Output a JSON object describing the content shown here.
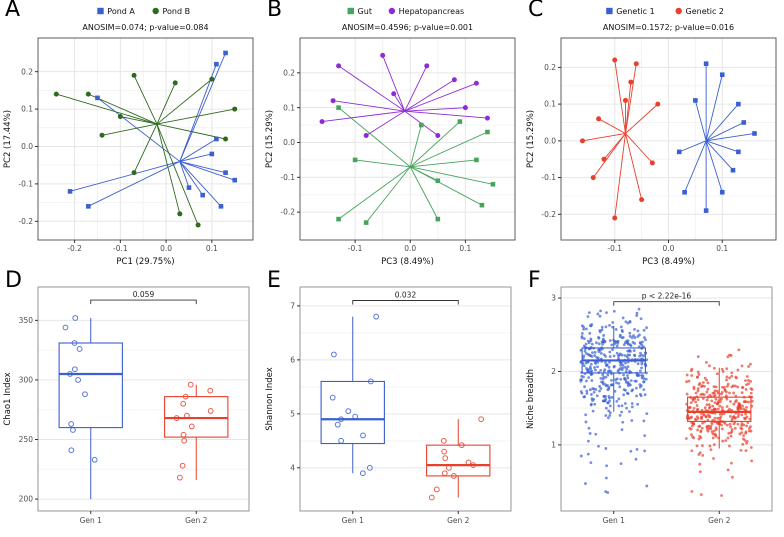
{
  "figure": {
    "panels": [
      "A",
      "B",
      "C",
      "D",
      "E",
      "F"
    ]
  },
  "colors": {
    "blue": "#3B5FD0",
    "red": "#E8402C",
    "dark_green": "#2D6A1E",
    "green": "#45A45D",
    "purple": "#8F2BD6",
    "grid": "#E6E6E6",
    "border": "#4D4D4D"
  },
  "chart_data": [
    {
      "panel_label": "A",
      "type": "spider",
      "title": "ANOSIM=0.074; p-value=0.084",
      "xlabel": "PC1 (29.75%)",
      "ylabel": "PC2 (17.44%)",
      "xlim": [
        -0.28,
        0.19
      ],
      "ylim": [
        -0.25,
        0.29
      ],
      "xticks": [
        -0.2,
        -0.1,
        0.0,
        0.1
      ],
      "yticks": [
        -0.2,
        -0.1,
        0.0,
        0.1,
        0.2
      ],
      "legend_position": "top",
      "series": [
        {
          "name": "Pond A",
          "color": "#3B5FD0",
          "shape": "square",
          "centroid": [
            0.03,
            -0.04
          ],
          "points": [
            [
              0.13,
              0.25
            ],
            [
              0.11,
              0.22
            ],
            [
              -0.15,
              0.13
            ],
            [
              -0.21,
              -0.12
            ],
            [
              -0.17,
              -0.16
            ],
            [
              0.1,
              -0.02
            ],
            [
              0.13,
              -0.07
            ],
            [
              0.15,
              -0.09
            ],
            [
              0.05,
              -0.11
            ],
            [
              0.08,
              -0.13
            ],
            [
              0.11,
              0.02
            ],
            [
              0.12,
              -0.16
            ]
          ]
        },
        {
          "name": "Pond B",
          "color": "#2D6A1E",
          "shape": "circle",
          "centroid": [
            -0.02,
            0.06
          ],
          "points": [
            [
              -0.24,
              0.14
            ],
            [
              -0.17,
              0.14
            ],
            [
              -0.07,
              0.19
            ],
            [
              0.02,
              0.17
            ],
            [
              0.1,
              0.18
            ],
            [
              -0.14,
              0.03
            ],
            [
              -0.1,
              0.08
            ],
            [
              0.15,
              0.1
            ],
            [
              0.13,
              0.02
            ],
            [
              -0.07,
              -0.07
            ],
            [
              0.03,
              -0.18
            ],
            [
              0.07,
              -0.21
            ]
          ]
        }
      ]
    },
    {
      "panel_label": "B",
      "type": "spider",
      "title": "ANOSIM=0.4596; p-value=0.001",
      "xlabel": "PC3 (8.49%)",
      "ylabel": "PC2 (15.29%)",
      "xlim": [
        -0.2,
        0.19
      ],
      "ylim": [
        -0.28,
        0.3
      ],
      "xticks": [
        -0.1,
        0.0,
        0.1
      ],
      "yticks": [
        -0.2,
        -0.1,
        0.0,
        0.1,
        0.2
      ],
      "legend_position": "top",
      "series": [
        {
          "name": "Gut",
          "color": "#45A45D",
          "shape": "square",
          "centroid": [
            0.0,
            -0.07
          ],
          "points": [
            [
              -0.13,
              -0.22
            ],
            [
              -0.08,
              -0.23
            ],
            [
              0.05,
              -0.22
            ],
            [
              0.13,
              -0.18
            ],
            [
              0.15,
              -0.12
            ],
            [
              0.12,
              -0.05
            ],
            [
              0.14,
              0.03
            ],
            [
              0.09,
              0.06
            ],
            [
              -0.1,
              -0.05
            ],
            [
              -0.13,
              0.1
            ],
            [
              0.05,
              -0.11
            ],
            [
              0.02,
              0.05
            ]
          ]
        },
        {
          "name": "Hepatopancreas",
          "color": "#8F2BD6",
          "shape": "circle",
          "centroid": [
            -0.01,
            0.09
          ],
          "points": [
            [
              -0.13,
              0.22
            ],
            [
              -0.05,
              0.25
            ],
            [
              0.03,
              0.22
            ],
            [
              0.08,
              0.18
            ],
            [
              0.12,
              0.17
            ],
            [
              -0.16,
              0.06
            ],
            [
              -0.14,
              0.12
            ],
            [
              0.1,
              0.1
            ],
            [
              0.14,
              0.07
            ],
            [
              -0.03,
              0.14
            ],
            [
              0.05,
              0.02
            ],
            [
              -0.08,
              0.02
            ]
          ]
        }
      ]
    },
    {
      "panel_label": "C",
      "type": "spider",
      "title": "ANOSIM=0.1572; p-value=0.016",
      "xlabel": "PC3 (8.49%)",
      "ylabel": "PC2 (15.29%)",
      "xlim": [
        -0.2,
        0.2
      ],
      "ylim": [
        -0.27,
        0.28
      ],
      "xticks": [
        -0.1,
        0.0,
        0.1
      ],
      "yticks": [
        -0.2,
        -0.1,
        0.0,
        0.1,
        0.2
      ],
      "legend_position": "top",
      "series": [
        {
          "name": "Genetic 1",
          "color": "#3B5FD0",
          "shape": "square",
          "centroid": [
            0.07,
            0.0
          ],
          "points": [
            [
              0.07,
              0.21
            ],
            [
              0.1,
              0.18
            ],
            [
              0.13,
              0.1
            ],
            [
              0.16,
              0.02
            ],
            [
              0.13,
              -0.03
            ],
            [
              0.1,
              -0.14
            ],
            [
              0.07,
              -0.19
            ],
            [
              0.03,
              -0.14
            ],
            [
              0.14,
              0.05
            ],
            [
              0.05,
              0.11
            ],
            [
              0.02,
              -0.03
            ],
            [
              0.12,
              -0.08
            ]
          ]
        },
        {
          "name": "Genetic 2",
          "color": "#E8402C",
          "shape": "circle",
          "centroid": [
            -0.08,
            0.02
          ],
          "points": [
            [
              -0.1,
              0.22
            ],
            [
              -0.06,
              0.21
            ],
            [
              -0.13,
              0.06
            ],
            [
              -0.16,
              0.0
            ],
            [
              -0.14,
              -0.1
            ],
            [
              -0.1,
              -0.21
            ],
            [
              -0.05,
              -0.16
            ],
            [
              -0.02,
              0.1
            ],
            [
              -0.08,
              0.11
            ],
            [
              -0.12,
              -0.05
            ],
            [
              -0.03,
              -0.06
            ],
            [
              -0.07,
              0.16
            ]
          ]
        }
      ]
    },
    {
      "panel_label": "D",
      "type": "box",
      "ylabel": "Chao1 Index",
      "categories": [
        "Gen 1",
        "Gen 2"
      ],
      "ylim": [
        190,
        378
      ],
      "yticks": [
        200,
        250,
        300,
        350
      ],
      "annotation": {
        "text": "0.059",
        "y": 367
      },
      "groups": [
        {
          "name": "Gen 1",
          "color": "#3B5FD0",
          "seed": 3,
          "q1": 260,
          "median": 305,
          "q3": 331,
          "lo": 200,
          "hi": 352,
          "points": [
            352,
            344,
            331,
            326,
            309,
            305,
            300,
            288,
            263,
            258,
            241,
            233
          ]
        },
        {
          "name": "Gen 2",
          "color": "#E8402C",
          "seed": 4,
          "q1": 252,
          "median": 268,
          "q3": 286,
          "lo": 216,
          "hi": 296,
          "points": [
            296,
            291,
            286,
            280,
            274,
            270,
            268,
            261,
            254,
            249,
            228,
            218
          ]
        }
      ]
    },
    {
      "panel_label": "E",
      "type": "box",
      "ylabel": "Shannon Index",
      "categories": [
        "Gen 1",
        "Gen 2"
      ],
      "ylim": [
        3.2,
        7.35
      ],
      "yticks": [
        4,
        5,
        6,
        7
      ],
      "annotation": {
        "text": "0.032",
        "y": 7.1
      },
      "groups": [
        {
          "name": "Gen 1",
          "color": "#3B5FD0",
          "seed": 5,
          "q1": 4.45,
          "median": 4.9,
          "q3": 5.6,
          "lo": 3.9,
          "hi": 6.8,
          "points": [
            6.8,
            6.1,
            5.6,
            5.3,
            5.05,
            4.95,
            4.9,
            4.8,
            4.6,
            4.5,
            4.0,
            3.9
          ]
        },
        {
          "name": "Gen 2",
          "color": "#E8402C",
          "seed": 6,
          "q1": 3.85,
          "median": 4.05,
          "q3": 4.42,
          "lo": 3.45,
          "hi": 4.9,
          "points": [
            4.9,
            4.5,
            4.42,
            4.3,
            4.18,
            4.1,
            4.05,
            4.0,
            3.9,
            3.85,
            3.6,
            3.45
          ]
        }
      ]
    },
    {
      "panel_label": "F",
      "type": "box",
      "ylabel": "Niche breadth",
      "categories": [
        "Gen 1",
        "Gen 2"
      ],
      "ylim": [
        0.1,
        3.15
      ],
      "yticks": [
        1,
        2,
        3
      ],
      "annotation": {
        "text": "p < 2.22e-16",
        "y": 2.95
      },
      "groups": [
        {
          "name": "Gen 1",
          "color": "#3B5FD0",
          "q1": 1.98,
          "median": 2.15,
          "q3": 2.32,
          "lo": 1.45,
          "hi": 2.62,
          "jitter": {
            "n": 420,
            "mean": 2.08,
            "sd": 0.33,
            "min": 0.32,
            "max": 2.85,
            "tail_frac": 0.07,
            "seed": 11
          }
        },
        {
          "name": "Gen 2",
          "color": "#E8402C",
          "q1": 1.32,
          "median": 1.45,
          "q3": 1.65,
          "lo": 0.95,
          "hi": 2.05,
          "jitter": {
            "n": 360,
            "mean": 1.5,
            "sd": 0.27,
            "min": 0.3,
            "max": 2.3,
            "tail_frac": 0.05,
            "seed": 29
          }
        }
      ]
    }
  ]
}
